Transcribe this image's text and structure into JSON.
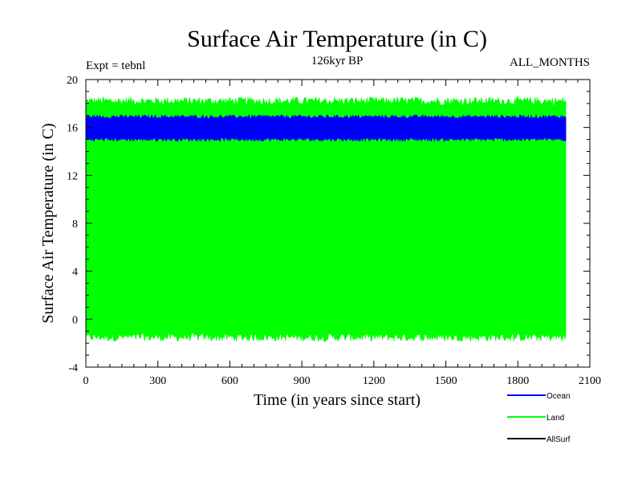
{
  "chart_data": {
    "type": "area",
    "title": "Surface Air Temperature (in C)",
    "subtitle_left": "Expt = tebnl",
    "subtitle_center": "126kyr BP",
    "subtitle_right": "ALL_MONTHS",
    "xlabel": "Time (in years since start)",
    "ylabel": "Surface Air Temperature (in C)",
    "xlim": [
      0,
      2100
    ],
    "ylim": [
      -4,
      20
    ],
    "x_ticks": [
      0,
      300,
      600,
      900,
      1200,
      1500,
      1800,
      2100
    ],
    "y_ticks": [
      -4,
      0,
      4,
      8,
      12,
      16,
      20
    ],
    "x_data_range": [
      0,
      2000
    ],
    "grid": false,
    "legend_position": "bottom-right",
    "series": [
      {
        "name": "Land",
        "color": "#00ff00",
        "low": -1.5,
        "high": 18.2,
        "noise": 0.35
      },
      {
        "name": "Ocean",
        "color": "#0000ff",
        "low": 15.0,
        "high": 16.9,
        "noise": 0.15
      },
      {
        "name": "AllSurf",
        "color": "#000000",
        "low": null,
        "high": null,
        "noise": 0
      }
    ]
  }
}
